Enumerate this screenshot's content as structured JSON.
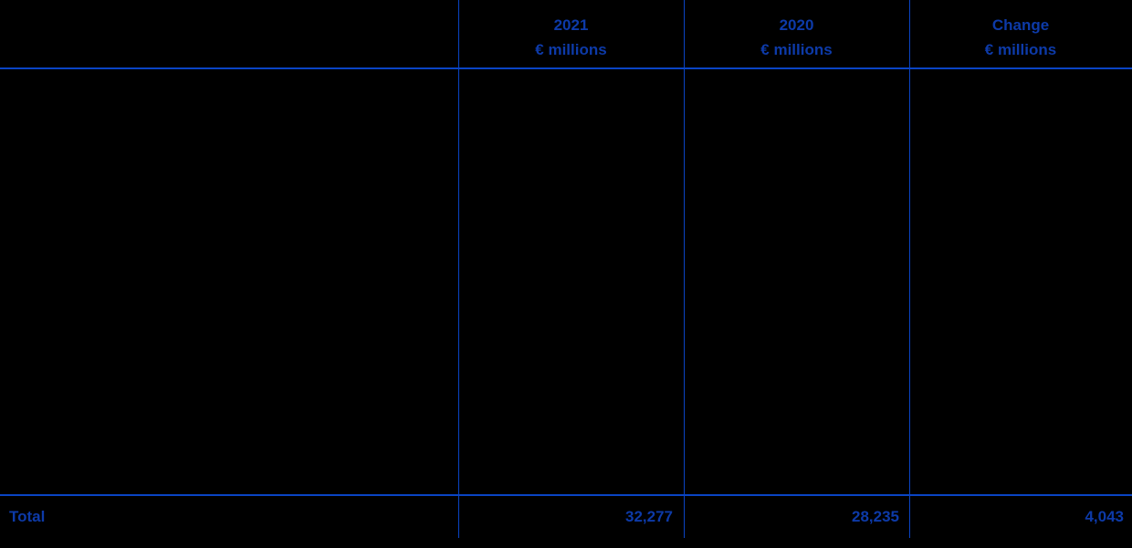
{
  "colors": {
    "background": "#000000",
    "text_blue": "#0d3aa8",
    "line_blue": "#0a44c4"
  },
  "table": {
    "header": {
      "col1": {
        "line1": "2021",
        "line2": "€ millions"
      },
      "col2": {
        "line1": "2020",
        "line2": "€ millions"
      },
      "col3": {
        "line1": "Change",
        "line2": "€ millions"
      }
    },
    "total": {
      "label": "Total",
      "col1": "32,277",
      "col2": "28,235",
      "col3": "4,043"
    }
  },
  "chart_data": {
    "type": "table",
    "columns": [
      "",
      "2021 € millions",
      "2020 € millions",
      "Change € millions"
    ],
    "rows": [
      [
        "Total",
        "32,277",
        "28,235",
        "4,043"
      ]
    ]
  }
}
